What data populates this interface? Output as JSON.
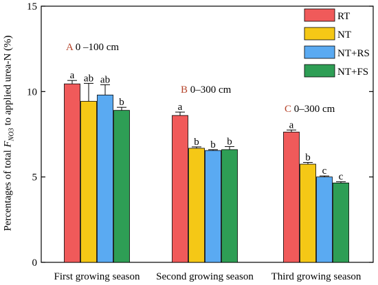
{
  "chart_data": {
    "type": "bar",
    "ylabel": {
      "prefix": "Percentages of total ",
      "var": "F",
      "sub": "NO3",
      "suffix": " to applied urea-N (%)"
    },
    "ylim": [
      0,
      15
    ],
    "yticks": [
      0,
      5,
      10,
      15
    ],
    "categories": [
      "First growing season",
      "Second growing season",
      "Third growing season"
    ],
    "group_labels": [
      {
        "letter": "A",
        "depth": " 0 –100 cm"
      },
      {
        "letter": "B",
        "depth": " 0–300 cm"
      },
      {
        "letter": "C",
        "depth": " 0–300 cm"
      }
    ],
    "series": [
      {
        "name": "RT",
        "color": "#f05a5a",
        "values": [
          10.45,
          8.6,
          7.63
        ],
        "errors": [
          0.2,
          0.2,
          0.12
        ],
        "letters": [
          "a",
          "a",
          "a"
        ]
      },
      {
        "name": "NT",
        "color": "#f5c816",
        "values": [
          9.43,
          6.68,
          5.75
        ],
        "errors": [
          1.05,
          0.08,
          0.1
        ],
        "letters": [
          "ab",
          "b",
          "b"
        ]
      },
      {
        "name": "NT+RS",
        "color": "#5aaaf2",
        "values": [
          9.8,
          6.55,
          5.0
        ],
        "errors": [
          0.6,
          0.05,
          0.06
        ],
        "letters": [
          "ab",
          "b",
          "c"
        ]
      },
      {
        "name": "NT+FS",
        "color": "#2e9e55",
        "values": [
          8.9,
          6.6,
          4.65
        ],
        "errors": [
          0.18,
          0.18,
          0.07
        ],
        "letters": [
          "b",
          "b",
          "c"
        ]
      }
    ],
    "grid": false,
    "legend_position": "top-right"
  }
}
